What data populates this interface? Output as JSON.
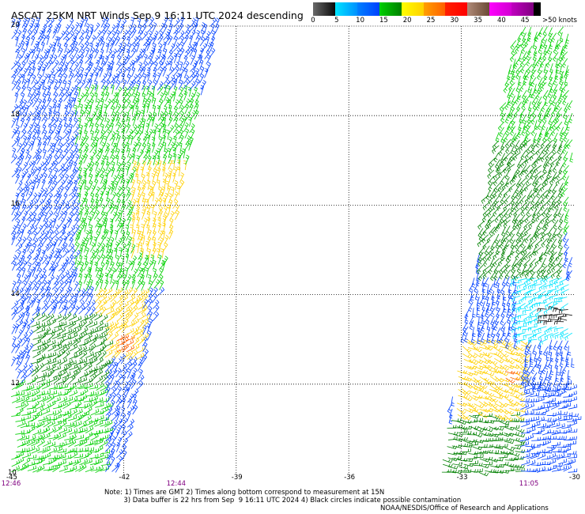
{
  "title": "ASCAT 25KM NRT Winds Sep  9 16:11 UTC 2024 descending",
  "colorbar": {
    "segments": [
      {
        "from": 0,
        "to": 5,
        "colors": [
          "#6a6a6a",
          "#0a0a0a"
        ]
      },
      {
        "from": 5,
        "to": 10,
        "colors": [
          "#00e5ff",
          "#0090ff"
        ]
      },
      {
        "from": 10,
        "to": 15,
        "colors": [
          "#0080ff",
          "#0040ff"
        ]
      },
      {
        "from": 15,
        "to": 20,
        "colors": [
          "#00d000",
          "#008000"
        ]
      },
      {
        "from": 20,
        "to": 25,
        "colors": [
          "#ffff00",
          "#ffd000"
        ]
      },
      {
        "from": 25,
        "to": 30,
        "colors": [
          "#ffa000",
          "#ff6000"
        ]
      },
      {
        "from": 30,
        "to": 35,
        "colors": [
          "#ff2000",
          "#ff0000"
        ]
      },
      {
        "from": 35,
        "to": 40,
        "colors": [
          "#b08a78",
          "#6a4a35"
        ]
      },
      {
        "from": 40,
        "to": 45,
        "colors": [
          "#ff00ff",
          "#d000d0"
        ]
      },
      {
        "from": 45,
        "to": 50,
        "colors": [
          "#c000c0",
          "#800080"
        ]
      },
      {
        "from": 50,
        "to": 55,
        "colors": [
          "#000000",
          "#000000"
        ]
      }
    ],
    "tick_labels": [
      "0",
      "5",
      "10",
      "15",
      "20",
      "25",
      "30",
      "35",
      "40",
      "45",
      ">50 knots"
    ]
  },
  "map": {
    "lon_range": [
      -45,
      -30
    ],
    "lat_range": [
      10,
      20
    ],
    "lon_ticks": [
      "-45",
      "-42",
      "-39",
      "-36",
      "-33",
      "-30"
    ],
    "lat_ticks": [
      "10",
      "12",
      "14",
      "16",
      "18",
      "20"
    ],
    "grid_lons": [
      -42,
      -39,
      -36,
      -33
    ],
    "grid_lats": [
      12,
      14,
      16,
      18
    ],
    "time_labels": [
      {
        "text": "12:46",
        "lon": -45
      },
      {
        "text": "12:44",
        "lon": -40.6
      },
      {
        "text": "11:05",
        "lon": -31.2
      }
    ],
    "swaths": [
      {
        "name": "west",
        "lat_range": [
          10,
          20
        ],
        "lon_left": [
          -45,
          -45
        ],
        "lon_right": [
          -42.1,
          -39.5
        ]
      },
      {
        "name": "east",
        "lat_range": [
          10,
          20
        ],
        "lon_left": [
          -33.6,
          -31.5
        ],
        "lon_right": [
          -30,
          -30
        ]
      }
    ],
    "wind_zones": [
      {
        "swath": "west",
        "lat": [
          17.0,
          20.0
        ],
        "lon": [
          -45.0,
          -39.5
        ],
        "color": "#0040ff",
        "dir_deg": 60
      },
      {
        "swath": "west",
        "lat": [
          14.0,
          18.5
        ],
        "lon": [
          -43.3,
          -40.0
        ],
        "color": "#00d000",
        "dir_deg": 65
      },
      {
        "swath": "west",
        "lat": [
          14.8,
          16.8
        ],
        "lon": [
          -41.8,
          -40.3
        ],
        "color": "#ffd000",
        "dir_deg": 70
      },
      {
        "swath": "west",
        "lat": [
          12.5,
          14.0
        ],
        "lon": [
          -42.8,
          -41.5
        ],
        "color": "#ffd000",
        "dir_deg": 40
      },
      {
        "swath": "west",
        "lat": [
          12.6,
          13.0
        ],
        "lon": [
          -42.3,
          -41.8
        ],
        "color": "#ff6000",
        "dir_deg": 30
      },
      {
        "swath": "west",
        "lat": [
          11.0,
          13.5
        ],
        "lon": [
          -44.5,
          -42.5
        ],
        "color": "#008000",
        "dir_deg": 30
      },
      {
        "swath": "west",
        "lat": [
          10.0,
          12.0
        ],
        "lon": [
          -45.0,
          -42.5
        ],
        "color": "#00d000",
        "dir_deg": 20
      },
      {
        "swath": "east",
        "lat": [
          15.5,
          20.0
        ],
        "lon": [
          -32.0,
          -30.0
        ],
        "color": "#00d000",
        "dir_deg": 240
      },
      {
        "swath": "east",
        "lat": [
          14.5,
          17.5
        ],
        "lon": [
          -32.5,
          -30.2
        ],
        "color": "#008000",
        "dir_deg": 230
      },
      {
        "swath": "east",
        "lat": [
          13.0,
          14.5
        ],
        "lon": [
          -31.5,
          -30.0
        ],
        "color": "#00e5ff",
        "dir_deg": 200
      },
      {
        "swath": "east",
        "lat": [
          13.3,
          13.7
        ],
        "lon": [
          -30.8,
          -30.0
        ],
        "color": "#0a0a0a",
        "dir_deg": 180
      },
      {
        "swath": "east",
        "lat": [
          13.7,
          14.8
        ],
        "lon": [
          -33.3,
          -32.8
        ],
        "color": "#ff6000",
        "dir_deg": 300
      },
      {
        "swath": "east",
        "lat": [
          11.3,
          13.0
        ],
        "lon": [
          -33.2,
          -31.3
        ],
        "color": "#ffd000",
        "dir_deg": 330
      },
      {
        "swath": "east",
        "lat": [
          12.0,
          12.3
        ],
        "lon": [
          -31.9,
          -31.6
        ],
        "color": "#ff6000",
        "dir_deg": 330
      },
      {
        "swath": "east",
        "lat": [
          10.0,
          12.0
        ],
        "lon": [
          -31.5,
          -30.0
        ],
        "color": "#0040ff",
        "dir_deg": 10
      },
      {
        "swath": "east",
        "lat": [
          10.0,
          11.3
        ],
        "lon": [
          -33.6,
          -31.5
        ],
        "color": "#008000",
        "dir_deg": 350
      }
    ],
    "default_swath_color": "#0040ff"
  },
  "notes": [
    "Note: 1) Times are GMT 2) Times along bottom correspond to measurement at 15N",
    "         3) Data buffer is 22 hrs from Sep  9 16:11 UTC 2024 4) Black circles indicate possible contamination"
  ],
  "credit": "NOAA/NESDIS/Office of Research and Applications"
}
